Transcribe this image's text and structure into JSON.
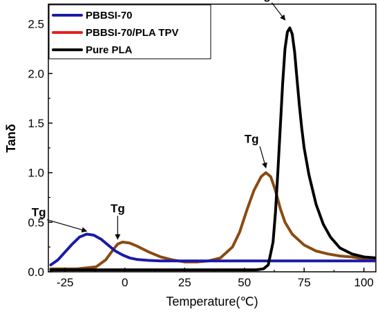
{
  "chart_data": {
    "type": "line",
    "xlabel": "Temperature(℃)",
    "ylabel": "Tanδ",
    "xlim": [
      -32,
      105
    ],
    "ylim": [
      0,
      2.7
    ],
    "xticks": [
      -25,
      0,
      25,
      50,
      75,
      100
    ],
    "xtick_labels": [
      "-25",
      "0",
      "25",
      "50",
      "75",
      "100"
    ],
    "yticks": [
      0.0,
      0.5,
      1.0,
      1.5,
      2.0,
      2.5
    ],
    "ytick_labels": [
      "0.0",
      "0.5",
      "1.0",
      "1.5",
      "2.0",
      "2.5"
    ],
    "grid": false,
    "legend_placement": "top-left",
    "series": [
      {
        "name": "PBBSI-70",
        "color": "#1a1aa8",
        "x": [
          -31,
          -28,
          -25,
          -22,
          -19,
          -16,
          -13,
          -10,
          -7,
          -4,
          -1,
          2,
          5,
          10,
          15,
          20,
          30,
          40,
          60,
          80,
          105
        ],
        "y": [
          0.07,
          0.12,
          0.2,
          0.28,
          0.35,
          0.38,
          0.37,
          0.33,
          0.27,
          0.21,
          0.17,
          0.14,
          0.125,
          0.115,
          0.11,
          0.11,
          0.11,
          0.11,
          0.11,
          0.11,
          0.11
        ]
      },
      {
        "name": "PBBSI-70/PLA TPV",
        "color": "#8a4a10",
        "x": [
          -31,
          -20,
          -12,
          -8,
          -5,
          -3,
          -1,
          2,
          5,
          10,
          15,
          20,
          25,
          30,
          35,
          40,
          45,
          48,
          51,
          54,
          57,
          59,
          61,
          63,
          65,
          67,
          70,
          75,
          80,
          85,
          90,
          95,
          100,
          105
        ],
        "y": [
          0.03,
          0.03,
          0.05,
          0.12,
          0.22,
          0.28,
          0.3,
          0.29,
          0.26,
          0.2,
          0.15,
          0.12,
          0.1,
          0.1,
          0.11,
          0.14,
          0.25,
          0.4,
          0.62,
          0.82,
          0.96,
          1.0,
          0.96,
          0.82,
          0.64,
          0.5,
          0.38,
          0.27,
          0.21,
          0.18,
          0.16,
          0.15,
          0.13,
          0.12
        ]
      },
      {
        "name": "Pure PLA",
        "color": "#000000",
        "x": [
          -31,
          0,
          30,
          55,
          58,
          60,
          62,
          63,
          64,
          65,
          66,
          67,
          68,
          69,
          70,
          71,
          72,
          73,
          74,
          75,
          77,
          80,
          83,
          86,
          90,
          95,
          100,
          105
        ],
        "y": [
          0.02,
          0.02,
          0.02,
          0.02,
          0.03,
          0.07,
          0.3,
          0.6,
          1.0,
          1.45,
          1.9,
          2.25,
          2.42,
          2.46,
          2.4,
          2.22,
          1.95,
          1.68,
          1.45,
          1.25,
          0.98,
          0.68,
          0.48,
          0.35,
          0.24,
          0.18,
          0.15,
          0.14
        ]
      }
    ],
    "annotations": [
      {
        "text": "Tg",
        "x": -36,
        "y": 0.56,
        "arrow_to_x": -16,
        "arrow_to_y": 0.41
      },
      {
        "text": "Tg",
        "x": -3,
        "y": 0.6,
        "arrow_to_x": -3,
        "arrow_to_y": 0.33
      },
      {
        "text": "Tg",
        "x": 53,
        "y": 1.3,
        "arrow_to_x": 59,
        "arrow_to_y": 1.05
      },
      {
        "text": "Tg",
        "x": 58,
        "y": 2.75,
        "arrow_to_x": 67,
        "arrow_to_y": 2.54
      }
    ]
  }
}
